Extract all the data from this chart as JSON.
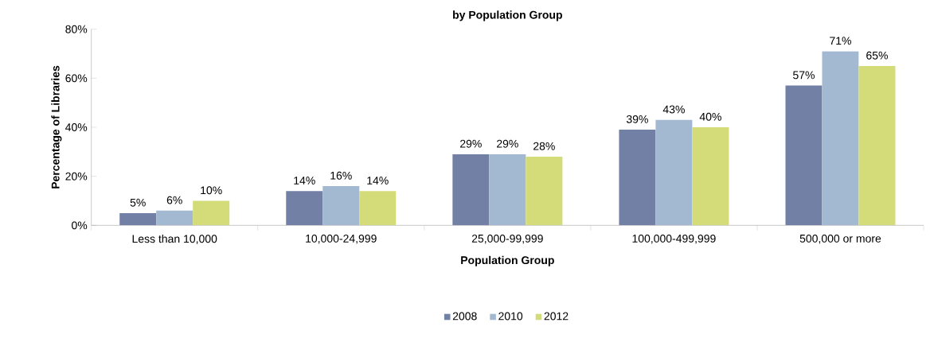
{
  "chart_data": {
    "type": "bar",
    "title": "by Population Group",
    "xlabel": "Population Group",
    "ylabel": "Percentage of Libraries",
    "categories": [
      "Less than 10,000",
      "10,000-24,999",
      "25,000-99,999",
      "100,000-499,999",
      "500,000 or more"
    ],
    "series": [
      {
        "name": "2008",
        "color": "#7380a6",
        "values": [
          5,
          14,
          29,
          39,
          57
        ],
        "value_labels": [
          "5%",
          "14%",
          "29%",
          "39%",
          "57%"
        ]
      },
      {
        "name": "2010",
        "color": "#a3b9d1",
        "values": [
          6,
          16,
          29,
          43,
          71
        ],
        "value_labels": [
          "6%",
          "16%",
          "29%",
          "43%",
          "71%"
        ]
      },
      {
        "name": "2012",
        "color": "#d4dc7a",
        "values": [
          10,
          14,
          28,
          40,
          65
        ],
        "value_labels": [
          "10%",
          "14%",
          "28%",
          "40%",
          "65%"
        ]
      }
    ],
    "ylim": [
      0,
      80
    ],
    "yticks": [
      {
        "value": 0,
        "label": "0%"
      },
      {
        "value": 20,
        "label": "20%"
      },
      {
        "value": 40,
        "label": "40%"
      },
      {
        "value": 60,
        "label": "60%"
      },
      {
        "value": 80,
        "label": "80%"
      }
    ],
    "grid": false,
    "legend": "bottom"
  }
}
